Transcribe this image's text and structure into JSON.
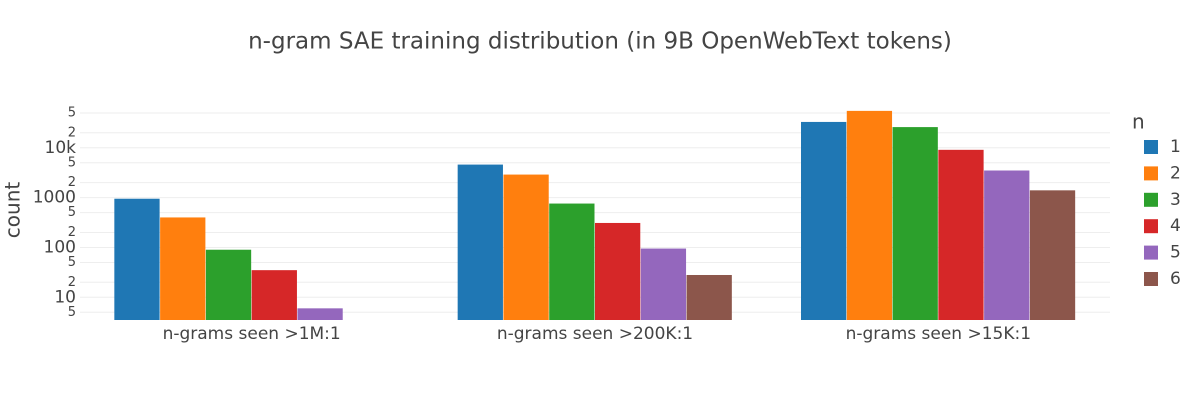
{
  "chart_data": {
    "type": "bar",
    "title": "n-gram SAE training distribution (in 9B OpenWebText tokens)",
    "y_label": "count",
    "legend_title": "n",
    "categories": [
      "n-grams seen >1M:1",
      "n-grams seen >200K:1",
      "n-grams seen >15K:1"
    ],
    "series": [
      {
        "name": "1",
        "color": "#1f77b4",
        "values": [
          950,
          4600,
          33000
        ]
      },
      {
        "name": "2",
        "color": "#ff7f0e",
        "values": [
          400,
          2900,
          55000
        ]
      },
      {
        "name": "3",
        "color": "#2ca02c",
        "values": [
          90,
          760,
          26000
        ]
      },
      {
        "name": "4",
        "color": "#d62728",
        "values": [
          35,
          310,
          9100
        ]
      },
      {
        "name": "5",
        "color": "#9467bd",
        "values": [
          6,
          95,
          3500
        ]
      },
      {
        "name": "6",
        "color": "#8c564b",
        "values": [
          null,
          28,
          1400
        ]
      }
    ],
    "log_y": true,
    "ylim": [
      3.5,
      60000
    ],
    "yticks": [
      5,
      10,
      {
        "value": 20,
        "label": "2"
      },
      {
        "value": 50,
        "label": "5"
      },
      100,
      {
        "value": 200,
        "label": "2"
      },
      {
        "value": 500,
        "label": "5"
      },
      1000,
      {
        "value": 2000,
        "label": "2"
      },
      {
        "value": 5000,
        "label": "5"
      },
      {
        "value": 10000,
        "label": "10k"
      },
      {
        "value": 20000,
        "label": "2"
      },
      {
        "value": 50000,
        "label": "5"
      }
    ],
    "grid": true,
    "legend_position": "right"
  }
}
